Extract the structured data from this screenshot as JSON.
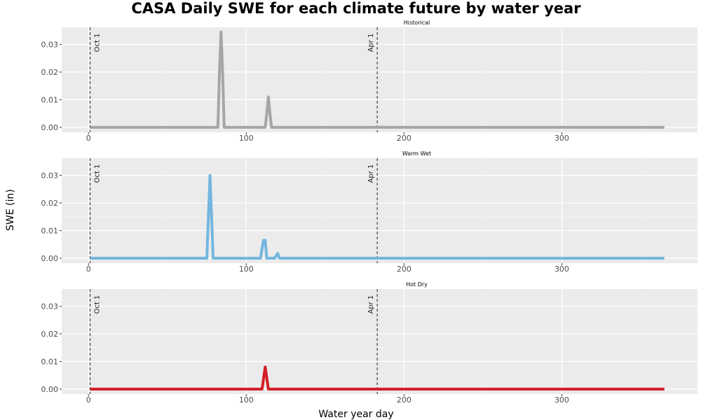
{
  "chart_data": {
    "type": "line",
    "title": "CASA Daily SWE for each climate future by water year",
    "xlabel": "Water year day",
    "ylabel": "SWE (in)",
    "xlim": [
      -17,
      386
    ],
    "ylim": [
      -0.0018,
      0.0362
    ],
    "xticks": [
      0,
      100,
      200,
      300
    ],
    "xtick_labels": [
      "0",
      "100",
      "200",
      "300"
    ],
    "yticks": [
      0,
      0.01,
      0.02,
      0.03
    ],
    "ytick_labels": [
      "0.00",
      "0.01",
      "0.02",
      "0.03"
    ],
    "grid": true,
    "vlines": [
      {
        "x": 1,
        "label": "Oct 1"
      },
      {
        "x": 183,
        "label": "Apr 1"
      }
    ],
    "panels": [
      {
        "name": "Historical",
        "color": "#a6a6a6",
        "x": [
          1,
          82,
          83,
          84,
          85,
          86,
          112,
          113,
          114,
          115,
          116,
          365
        ],
        "y": [
          0,
          0,
          0.02,
          0.0345,
          0.02,
          0,
          0,
          0.005,
          0.011,
          0.005,
          0,
          0
        ]
      },
      {
        "name": "Warm Wet",
        "color": "#74b6e0",
        "x": [
          1,
          75,
          76,
          77,
          78,
          79,
          109,
          110,
          111,
          112,
          113,
          118,
          119,
          120,
          121,
          365
        ],
        "y": [
          0,
          0,
          0.015,
          0.03,
          0.015,
          0,
          0,
          0.0035,
          0.0065,
          0.0065,
          0,
          0,
          0.001,
          0.0017,
          0,
          0
        ]
      },
      {
        "name": "Hot Dry",
        "color": "#d41f26",
        "x": [
          1,
          110,
          111,
          112,
          113,
          114,
          365
        ],
        "y": [
          0,
          0,
          0.004,
          0.008,
          0.004,
          0,
          0
        ]
      }
    ]
  }
}
